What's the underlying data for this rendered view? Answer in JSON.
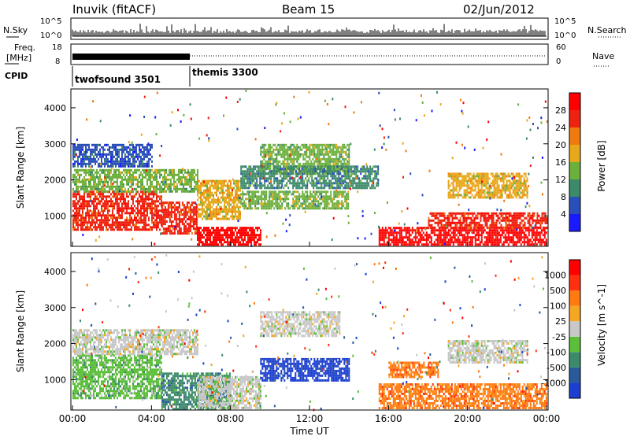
{
  "header": {
    "station": "Inuvik (fitACF)",
    "beam": "Beam 15",
    "date": "02/Jun/2012"
  },
  "top_panels": {
    "nsky_label": "N.Sky",
    "nsearch_label": "N.Search",
    "freq_label_1": "Freq.",
    "freq_label_2": "[MHz]",
    "nave_label": "Nave",
    "cpid_label": "CPID",
    "n_left_ticks": [
      "10^5",
      "10^0"
    ],
    "n_right_ticks": [
      "10^5",
      "10^0"
    ],
    "freq_ticks": [
      "18",
      "8"
    ],
    "nave_ticks": [
      "60",
      "0"
    ],
    "cpid_modes": [
      {
        "name": "twofsound 3501",
        "start_hour": 0,
        "end_hour": 6
      },
      {
        "name": "themis 3300",
        "start_hour": 6,
        "end_hour": 24
      }
    ]
  },
  "power_colorbar": {
    "label": "Power [dB]",
    "ticks": [
      "4",
      "8",
      "12",
      "16",
      "20",
      "24",
      "28"
    ],
    "colors": [
      "#1a1aff",
      "#2a4fb8",
      "#3d8a6a",
      "#6cb03c",
      "#e8a81c",
      "#f07a10",
      "#ee2210",
      "#ff0000"
    ]
  },
  "velocity_colorbar": {
    "label": "Velocity [m s^-1]",
    "ticks": [
      "1000",
      "500",
      "100",
      "25",
      "-25",
      "-100",
      "-500",
      "-1000"
    ],
    "colors": [
      "#1c3fd0",
      "#2a5a9a",
      "#3d8a6a",
      "#5bbf3a",
      "#c8c8c8",
      "#f5a623",
      "#ff7a10",
      "#ff3010",
      "#ff0000"
    ]
  },
  "chart_data": [
    {
      "type": "heatmap",
      "name": "Power",
      "ylabel": "Slant Range [km]",
      "xlabel": "Time UT",
      "xlim_hours": [
        0,
        24
      ],
      "ylim_km": [
        180,
        4500
      ],
      "x_ticks": [
        "00:00",
        "04:00",
        "08:00",
        "12:00",
        "16:00",
        "20:00",
        "00:00"
      ],
      "y_ticks": [
        1000,
        2000,
        3000,
        4000
      ],
      "regions": [
        {
          "t0": 0.0,
          "t1": 4.5,
          "r0": 600,
          "r1": 1700,
          "level": 6
        },
        {
          "t0": 4.5,
          "t1": 6.3,
          "r0": 500,
          "r1": 1400,
          "level": 6
        },
        {
          "t0": 6.3,
          "t1": 9.5,
          "r0": 200,
          "r1": 700,
          "level": 7
        },
        {
          "t0": 0.0,
          "t1": 6.3,
          "r0": 1700,
          "r1": 2300,
          "level": 3
        },
        {
          "t0": 6.3,
          "t1": 8.5,
          "r0": 900,
          "r1": 2000,
          "level": 4
        },
        {
          "t0": 8.5,
          "t1": 14.0,
          "r0": 1200,
          "r1": 1700,
          "level": 3
        },
        {
          "t0": 9.5,
          "t1": 14.0,
          "r0": 2200,
          "r1": 3000,
          "level": 3
        },
        {
          "t0": 8.5,
          "t1": 15.5,
          "r0": 1800,
          "r1": 2400,
          "level": 2
        },
        {
          "t0": 15.5,
          "t1": 24.0,
          "r0": 200,
          "r1": 700,
          "level": 7
        },
        {
          "t0": 18.0,
          "t1": 24.0,
          "r0": 700,
          "r1": 1100,
          "level": 6
        },
        {
          "t0": 19.0,
          "t1": 23.0,
          "r0": 1500,
          "r1": 2200,
          "level": 4
        },
        {
          "t0": 0.0,
          "t1": 4.0,
          "r0": 2400,
          "r1": 3000,
          "level": 1
        }
      ]
    },
    {
      "type": "heatmap",
      "name": "Velocity",
      "ylabel": "Slant Range [km]",
      "xlabel": "Time UT",
      "xlim_hours": [
        0,
        24
      ],
      "ylim_km": [
        180,
        4500
      ],
      "x_ticks": [
        "00:00",
        "04:00",
        "08:00",
        "12:00",
        "16:00",
        "20:00",
        "00:00"
      ],
      "y_ticks": [
        1000,
        2000,
        3000,
        4000
      ],
      "regions": [
        {
          "t0": 0.0,
          "t1": 4.5,
          "r0": 500,
          "r1": 1700,
          "level": 3
        },
        {
          "t0": 4.5,
          "t1": 8.0,
          "r0": 200,
          "r1": 1200,
          "level": 2
        },
        {
          "t0": 0.0,
          "t1": 6.3,
          "r0": 1700,
          "r1": 2400,
          "level": 4
        },
        {
          "t0": 6.3,
          "t1": 9.5,
          "r0": 200,
          "r1": 1100,
          "level": 4
        },
        {
          "t0": 9.5,
          "t1": 13.5,
          "r0": 2200,
          "r1": 2900,
          "level": 4
        },
        {
          "t0": 9.5,
          "t1": 14.0,
          "r0": 1000,
          "r1": 1600,
          "level": 0
        },
        {
          "t0": 15.5,
          "t1": 24.0,
          "r0": 200,
          "r1": 900,
          "level": 6
        },
        {
          "t0": 19.0,
          "t1": 23.0,
          "r0": 1500,
          "r1": 2100,
          "level": 4
        },
        {
          "t0": 16.0,
          "t1": 18.5,
          "r0": 1100,
          "r1": 1500,
          "level": 6
        }
      ]
    }
  ]
}
